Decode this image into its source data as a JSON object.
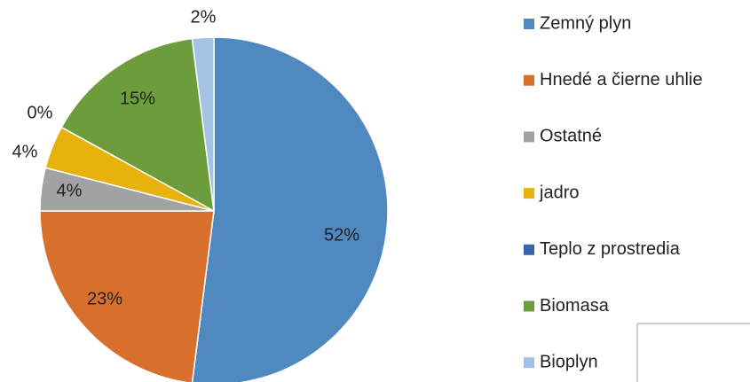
{
  "chart_data": {
    "type": "pie",
    "categories": [
      "Zemný plyn",
      "Hnedé a čierne uhlie",
      "Ostatné",
      "jadro",
      "Teplo z prostredia",
      "Biomasa",
      "Bioplyn"
    ],
    "values": [
      52,
      23,
      4,
      4,
      0,
      15,
      2
    ],
    "value_labels": [
      "52%",
      "23%",
      "4%",
      "4%",
      "0%",
      "15%",
      "2%"
    ],
    "colors": [
      "#5088c0",
      "#d86f2c",
      "#a2a2a2",
      "#e8b20c",
      "#3c62aa",
      "#6c9c3c",
      "#a3c2e4"
    ],
    "legend": "right"
  }
}
